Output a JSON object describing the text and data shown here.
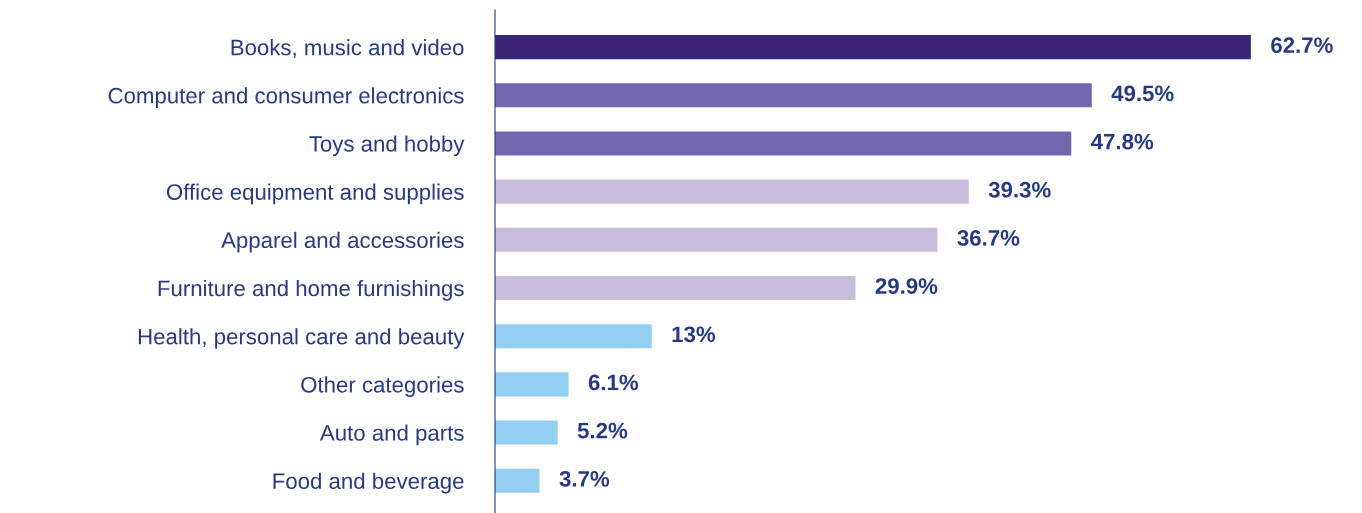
{
  "chart_data": {
    "type": "bar",
    "orientation": "horizontal",
    "categories": [
      "Books, music and video",
      "Computer and consumer electronics",
      "Toys and hobby",
      "Office equipment and supplies",
      "Apparel and accessories",
      "Furniture and home furnishings",
      "Health, personal care and beauty",
      "Other categories",
      "Auto and parts",
      "Food and beverage"
    ],
    "values": [
      62.7,
      49.5,
      47.8,
      39.3,
      36.7,
      29.9,
      13,
      6.1,
      5.2,
      3.7
    ],
    "value_labels": [
      "62.7%",
      "49.5%",
      "47.8%",
      "39.3%",
      "36.7%",
      "29.9%",
      "13%",
      "6.1%",
      "5.2%",
      "3.7%"
    ],
    "colors": [
      "#3b2577",
      "#7266b0",
      "#7266b0",
      "#c9bddd",
      "#c9bddd",
      "#c9bddd",
      "#92cff0",
      "#92cff0",
      "#92cff0",
      "#92cff0"
    ],
    "grid": false,
    "legend": false
  }
}
